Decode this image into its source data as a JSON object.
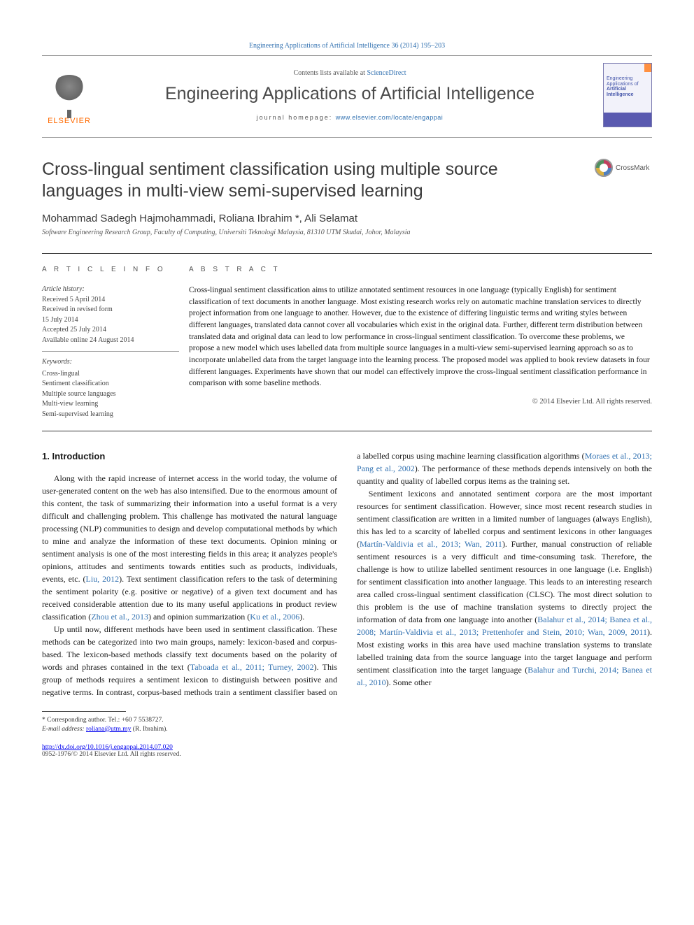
{
  "top_citation": "Engineering Applications of Artificial Intelligence 36 (2014) 195–203",
  "header": {
    "contents_prefix": "Contents lists available at ",
    "contents_link": "ScienceDirect",
    "journal_name": "Engineering Applications of Artificial Intelligence",
    "homepage_prefix": "journal homepage: ",
    "homepage_url": "www.elsevier.com/locate/engappai",
    "elsevier_brand": "ELSEVIER",
    "cover_subtitle": "Engineering Applications of",
    "cover_title": "Artificial Intelligence"
  },
  "article": {
    "title": "Cross-lingual sentiment classification using multiple source languages in multi-view semi-supervised learning",
    "crossmark_label": "CrossMark",
    "authors_html": "Mohammad Sadegh Hajmohammadi, Roliana Ibrahim *, Ali Selamat",
    "affiliation": "Software Engineering Research Group, Faculty of Computing, Universiti Teknologi Malaysia, 81310 UTM Skudai, Johor, Malaysia"
  },
  "info": {
    "heading": "A R T I C L E  I N F O",
    "history_label": "Article history:",
    "history": [
      "Received 5 April 2014",
      "Received in revised form",
      "15 July 2014",
      "Accepted 25 July 2014",
      "Available online 24 August 2014"
    ],
    "keywords_label": "Keywords:",
    "keywords": [
      "Cross-lingual",
      "Sentiment classification",
      "Multiple source languages",
      "Multi-view learning",
      "Semi-supervised learning"
    ]
  },
  "abstract": {
    "heading": "A B S T R A C T",
    "text": "Cross-lingual sentiment classification aims to utilize annotated sentiment resources in one language (typically English) for sentiment classification of text documents in another language. Most existing research works rely on automatic machine translation services to directly project information from one language to another. However, due to the existence of differing linguistic terms and writing styles between different languages, translated data cannot cover all vocabularies which exist in the original data. Further, different term distribution between translated data and original data can lead to low performance in cross-lingual sentiment classification. To overcome these problems, we propose a new model which uses labelled data from multiple source languages in a multi-view semi-supervised learning approach so as to incorporate unlabelled data from the target language into the learning process. The proposed model was applied to book review datasets in four different languages. Experiments have shown that our model can effectively improve the cross-lingual sentiment classification performance in comparison with some baseline methods.",
    "copyright": "© 2014 Elsevier Ltd. All rights reserved."
  },
  "body": {
    "heading": "1. Introduction",
    "p1a": "Along with the rapid increase of internet access in the world today, the volume of user-generated content on the web has also intensified. Due to the enormous amount of this content, the task of summarizing their information into a useful format is a very difficult and challenging problem. This challenge has motivated the natural language processing (NLP) communities to design and develop computational methods by which to mine and analyze the information of these text documents. Opinion mining or sentiment analysis is one of the most interesting fields in this area; it analyzes people's opinions, attitudes and sentiments towards entities such as products, individuals, events, etc. (",
    "c1": "Liu, 2012",
    "p1b": "). Text sentiment classification refers to the task of determining the sentiment polarity (e.g. positive or negative) of a given text document and has received considerable attention due to its many useful applications in product review classification (",
    "c2": "Zhou et al., 2013",
    "p1c": ") and opinion summarization (",
    "c3": "Ku et al., 2006",
    "p1d": ").",
    "p2a": "Up until now, different methods have been used in sentiment classification. These methods can be categorized into two main groups, namely: lexicon-based and corpus-based. The lexicon-based methods classify text documents based on the polarity of words and phrases contained in the text (",
    "c4": "Taboada et al., 2011; Turney, 2002",
    "p2b": "). This group of methods requires a sentiment lexicon to distinguish between positive and negative terms. In contrast, corpus-based methods train a sentiment classifier based on a labelled corpus using machine learning classification algorithms (",
    "c5": "Moraes et al., 2013; Pang et al., 2002",
    "p2c": "). The performance of these methods depends intensively on both the quantity and quality of labelled corpus items as the training set.",
    "p3a": "Sentiment lexicons and annotated sentiment corpora are the most important resources for sentiment classification. However, since most recent research studies in sentiment classification are written in a limited number of languages (always English), this has led to a scarcity of labelled corpus and sentiment lexicons in other languages (",
    "c6": "Martín-Valdivia et al., 2013; Wan, 2011",
    "p3b": "). Further, manual construction of reliable sentiment resources is a very difficult and time-consuming task. Therefore, the challenge is how to utilize labelled sentiment resources in one language (i.e. English) for sentiment classification into another language. This leads to an interesting research area called cross-lingual sentiment classification (CLSC). The most direct solution to this problem is the use of machine translation systems to directly project the information of data from one language into another (",
    "c7": "Balahur et al., 2014; Banea et al., 2008; Martín-Valdivia et al., 2013; Prettenhofer and Stein, 2010; Wan, 2009, 2011",
    "p3c": "). Most existing works in this area have used machine translation systems to translate labelled training data from the source language into the target language and perform sentiment classification into the target language (",
    "c8": "Balahur and Turchi, 2014; Banea et al., 2010",
    "p3d": "). Some other"
  },
  "footnotes": {
    "corresponding": "* Corresponding author. Tel.: +60 7 5538727.",
    "email_label": "E-mail address: ",
    "email": "roliana@utm.my",
    "email_suffix": " (R. Ibrahim)."
  },
  "footer": {
    "doi": "http://dx.doi.org/10.1016/j.engappai.2014.07.020",
    "issn_line": "0952-1976/© 2014 Elsevier Ltd. All rights reserved."
  },
  "colors": {
    "link": "#3070b0",
    "elsevier_orange": "#ff6a00",
    "text": "#1a1a1a",
    "muted": "#555555",
    "rule": "#333333"
  }
}
